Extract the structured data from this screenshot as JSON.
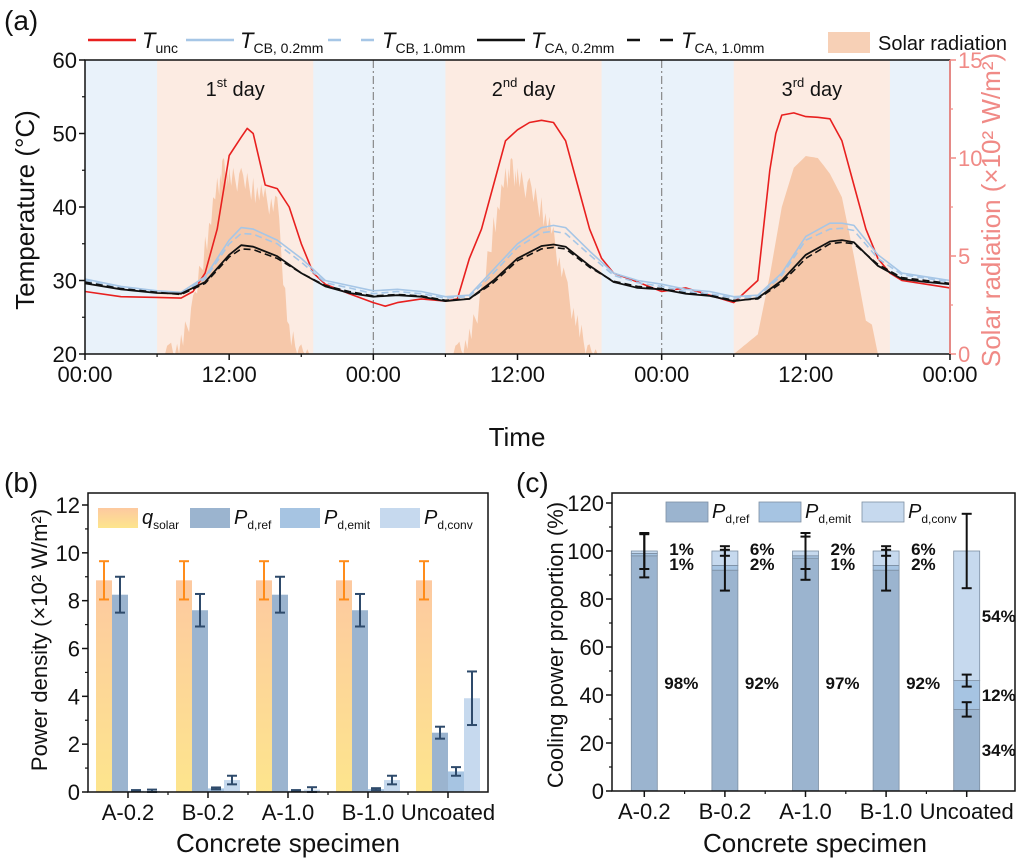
{
  "chart_data": [
    {
      "panel": "(a)",
      "type": "line",
      "xlabel": "Time",
      "ylabel": "Temperature (°C)",
      "ylabel_right": "Solar radiation (×10² W/m²)",
      "ylim": [
        20,
        60
      ],
      "ylim_right": [
        0,
        15
      ],
      "yticks": [
        20,
        30,
        40,
        50,
        60
      ],
      "yticks_right": [
        0,
        5,
        10,
        15
      ],
      "xlim_hours": [
        0,
        72
      ],
      "xtick_labels": [
        "00:00",
        "12:00",
        "00:00",
        "12:00",
        "00:00",
        "12:00",
        "00:00"
      ],
      "day_labels": [
        {
          "num": "1",
          "sup": "st",
          "text": "day"
        },
        {
          "num": "2",
          "sup": "nd",
          "text": "day"
        },
        {
          "num": "3",
          "sup": "rd",
          "text": "day"
        }
      ],
      "daytime_windows_hours": [
        [
          6,
          19
        ],
        [
          30,
          43
        ],
        [
          54,
          67
        ]
      ],
      "day_separators_hours": [
        24,
        48
      ],
      "legend": [
        {
          "key": "unc",
          "main": "T",
          "sub": "unc",
          "color": "#e8201f",
          "style": "solid"
        },
        {
          "key": "cb02",
          "main": "T",
          "sub": "CB, 0.2mm",
          "color": "#a6c6e6",
          "style": "solid"
        },
        {
          "key": "cb10",
          "main": "T",
          "sub": "CB, 1.0mm",
          "color": "#a6c6e6",
          "style": "dashed"
        },
        {
          "key": "ca02",
          "main": "T",
          "sub": "CA, 0.2mm",
          "color": "#111111",
          "style": "solid"
        },
        {
          "key": "ca10",
          "main": "T",
          "sub": "CA, 1.0mm",
          "color": "#111111",
          "style": "dashed"
        },
        {
          "key": "solar",
          "main": "Solar radiation",
          "sub": "",
          "color": "#f5c4a4",
          "style": "area"
        }
      ],
      "series": [
        {
          "name": "T_unc",
          "x": [
            0,
            3,
            6,
            8,
            9,
            10,
            11,
            12,
            13,
            13.5,
            14,
            15,
            16,
            17,
            18,
            19,
            20,
            22,
            24,
            25,
            26,
            28,
            30,
            31,
            32,
            33,
            34,
            35,
            36,
            37,
            38,
            39,
            40,
            41,
            42,
            43,
            44,
            46,
            48,
            50,
            52,
            54,
            55,
            56,
            57,
            57.5,
            58,
            59,
            60,
            61,
            62,
            63,
            64,
            65,
            66,
            67,
            68,
            70,
            72
          ],
          "y": [
            28.5,
            27.8,
            27.7,
            27.6,
            28.5,
            31,
            37,
            47,
            49.5,
            50.7,
            50,
            43,
            42.5,
            40,
            35,
            31,
            29.5,
            28.2,
            27,
            26.5,
            27,
            27.5,
            27.2,
            27.5,
            33,
            37,
            43,
            49,
            50.5,
            51.5,
            51.8,
            51.5,
            49,
            43,
            37,
            33,
            31,
            29.8,
            28.5,
            29,
            28,
            27,
            28.5,
            30,
            45,
            50,
            52.5,
            52.8,
            52.3,
            52.2,
            52,
            49,
            43,
            37,
            33,
            31,
            30,
            29.5,
            29
          ]
        },
        {
          "name": "T_CB,0.2mm",
          "x": [
            0,
            3,
            6,
            8,
            10,
            12,
            13,
            14,
            16,
            18,
            20,
            22,
            24,
            26,
            28,
            30,
            32,
            34,
            36,
            38,
            39,
            40,
            42,
            44,
            46,
            48,
            50,
            52,
            54,
            56,
            58,
            60,
            62,
            63,
            64,
            66,
            68,
            70,
            72
          ],
          "y": [
            30.2,
            29.2,
            28.6,
            28.4,
            30.5,
            35.5,
            37.2,
            37,
            35.5,
            33,
            30,
            29.3,
            28.6,
            28.8,
            28.5,
            27.8,
            28,
            31.5,
            35,
            37.2,
            37.5,
            37.2,
            34,
            31,
            30,
            29.5,
            28.8,
            28.5,
            27.8,
            28,
            31,
            36,
            37.8,
            37.8,
            37.5,
            33.5,
            31,
            30.5,
            30
          ]
        },
        {
          "name": "T_CB,1.0mm",
          "x": [
            0,
            3,
            6,
            8,
            10,
            12,
            13,
            14,
            16,
            18,
            20,
            22,
            24,
            26,
            28,
            30,
            32,
            34,
            36,
            38,
            39,
            40,
            42,
            44,
            46,
            48,
            50,
            52,
            54,
            56,
            58,
            60,
            62,
            63,
            64,
            66,
            68,
            70,
            72
          ],
          "y": [
            30,
            29,
            28.4,
            28.2,
            30.2,
            35,
            36.4,
            36.3,
            35,
            32.5,
            29.7,
            29,
            28.2,
            28.5,
            28.2,
            27.6,
            27.8,
            31,
            34.5,
            36.5,
            36.7,
            36.4,
            33.5,
            30.7,
            29.7,
            29.2,
            28.5,
            28.2,
            27.6,
            27.8,
            30.7,
            35.5,
            37,
            37.1,
            36.8,
            33,
            30.8,
            30.3,
            29.8
          ]
        },
        {
          "name": "T_CA,0.2mm",
          "x": [
            0,
            3,
            6,
            8,
            10,
            12,
            13,
            14,
            16,
            18,
            20,
            22,
            24,
            26,
            28,
            30,
            32,
            34,
            36,
            38,
            39,
            40,
            42,
            44,
            46,
            48,
            50,
            52,
            54,
            56,
            58,
            60,
            62,
            63,
            64,
            66,
            68,
            70,
            72
          ],
          "y": [
            29.6,
            28.8,
            28.3,
            28.2,
            29.8,
            33.5,
            34.8,
            34.6,
            33.3,
            31,
            29.2,
            28.3,
            27.8,
            28,
            27.8,
            27.2,
            27.5,
            30,
            33,
            34.7,
            34.9,
            34.6,
            32,
            29.8,
            29,
            28.8,
            28.2,
            27.9,
            27.2,
            27.6,
            30,
            33.5,
            35.3,
            35.5,
            35.2,
            32,
            30.2,
            29.8,
            29.5
          ]
        },
        {
          "name": "T_CA,1.0mm",
          "x": [
            0,
            3,
            6,
            8,
            10,
            12,
            13,
            14,
            16,
            18,
            20,
            22,
            24,
            26,
            28,
            30,
            32,
            34,
            36,
            38,
            39,
            40,
            42,
            44,
            46,
            48,
            50,
            52,
            54,
            56,
            58,
            60,
            62,
            63,
            64,
            66,
            68,
            70,
            72
          ],
          "y": [
            29.8,
            28.9,
            28.4,
            28.1,
            29.6,
            33.2,
            34.3,
            34.2,
            33,
            31,
            29.3,
            28.5,
            27.9,
            28.1,
            27.9,
            27.3,
            27.5,
            29.7,
            32.7,
            34.3,
            34.5,
            34.3,
            31.8,
            29.9,
            29.2,
            28.9,
            28.3,
            28,
            27.3,
            27.5,
            29.7,
            33,
            35,
            35.2,
            35,
            32.2,
            30.4,
            30,
            29.6
          ]
        },
        {
          "name": "Solar radiation",
          "x": [
            6,
            7,
            8,
            9,
            10,
            11,
            11.5,
            12,
            13,
            14,
            15,
            16,
            17,
            18,
            19,
            30,
            31,
            32,
            33,
            34,
            35,
            35.5,
            36,
            37,
            38,
            39,
            40,
            41,
            42,
            43,
            54,
            55,
            56,
            57,
            58,
            59,
            60,
            61,
            62,
            63,
            64,
            65,
            65.5,
            66,
            67
          ],
          "y": [
            0,
            0.5,
            1,
            3,
            6,
            9,
            10,
            9.5,
            9.5,
            9,
            8.5,
            8,
            1.5,
            0.5,
            0,
            0,
            0.5,
            1.3,
            3.5,
            7,
            9.5,
            10,
            9.5,
            9,
            8,
            6.5,
            4,
            2,
            0.5,
            0,
            0,
            0.5,
            1,
            4,
            7.5,
            9.5,
            10.1,
            10,
            9.2,
            8,
            5,
            1.7,
            1.5,
            0,
            0
          ]
        }
      ]
    },
    {
      "panel": "(b)",
      "type": "bar",
      "xlabel": "Concrete specimen",
      "ylabel": "Power density (×10² W/m²)",
      "ylim": [
        0,
        12
      ],
      "yticks": [
        0,
        2,
        4,
        6,
        8,
        10,
        12
      ],
      "categories": [
        "A-0.2",
        "B-0.2",
        "A-1.0",
        "B-1.0",
        "Uncoated"
      ],
      "legend_position": "top",
      "series": [
        {
          "name": "q_solar",
          "main": "q",
          "sub": "solar",
          "color": "#fdd58f",
          "values": [
            8.85,
            8.85,
            8.85,
            8.85,
            8.85
          ],
          "errors": [
            0.8,
            0.8,
            0.8,
            0.8,
            0.8
          ],
          "err_color": "#ff8c1a"
        },
        {
          "name": "P_d,ref",
          "main": "P",
          "sub": "d,ref",
          "color": "#9bb4cf",
          "values": [
            8.25,
            7.6,
            8.25,
            7.6,
            2.48
          ],
          "errors": [
            0.75,
            0.68,
            0.75,
            0.68,
            0.25
          ],
          "err_color": "#2e4a6b"
        },
        {
          "name": "P_d,emit",
          "main": "P",
          "sub": "d,emit",
          "color": "#a6c4e2",
          "values": [
            0.05,
            0.15,
            0.05,
            0.12,
            0.86
          ],
          "errors": [
            0.03,
            0.04,
            0.03,
            0.04,
            0.18
          ],
          "err_color": "#2e4a6b"
        },
        {
          "name": "P_d,conv",
          "main": "P",
          "sub": "d,conv",
          "color": "#c6d9ee",
          "values": [
            0.05,
            0.5,
            0.1,
            0.5,
            3.92
          ],
          "errors": [
            0.05,
            0.18,
            0.1,
            0.18,
            1.12
          ],
          "err_color": "#2e4a6b"
        }
      ]
    },
    {
      "panel": "(c)",
      "type": "bar",
      "stacked": true,
      "xlabel": "Concrete specimen",
      "ylabel": "Cooling power proportion (%)",
      "ylim": [
        0,
        120
      ],
      "yticks": [
        0,
        20,
        40,
        60,
        80,
        100,
        120
      ],
      "categories": [
        "A-0.2",
        "B-0.2",
        "A-1.0",
        "B-1.0",
        "Uncoated"
      ],
      "legend_position": "top",
      "series": [
        {
          "name": "P_d,ref",
          "main": "P",
          "sub": "d,ref",
          "color": "#9bb4cf",
          "values": [
            98,
            92,
            97,
            92,
            34
          ],
          "labels": [
            "98%",
            "92%",
            "97%",
            "92%",
            "34%"
          ],
          "errors": [
            9,
            8.5,
            9,
            8.5,
            3
          ]
        },
        {
          "name": "P_d,emit",
          "main": "P",
          "sub": "d,emit",
          "color": "#a6c4e2",
          "values": [
            1,
            2,
            1,
            2,
            12
          ],
          "labels": [
            "1%",
            "2%",
            "1%",
            "2%",
            "12%"
          ],
          "errors": [
            0,
            0,
            0,
            0,
            2.5
          ]
        },
        {
          "name": "P_d,conv",
          "main": "P",
          "sub": "d,conv",
          "color": "#c6d9ee",
          "values": [
            1,
            6,
            2,
            6,
            54
          ],
          "labels": [
            "1%",
            "6%",
            "2%",
            "6%",
            "54%"
          ],
          "errors": [
            7.5,
            2,
            7.5,
            2,
            15.5
          ]
        }
      ]
    }
  ]
}
